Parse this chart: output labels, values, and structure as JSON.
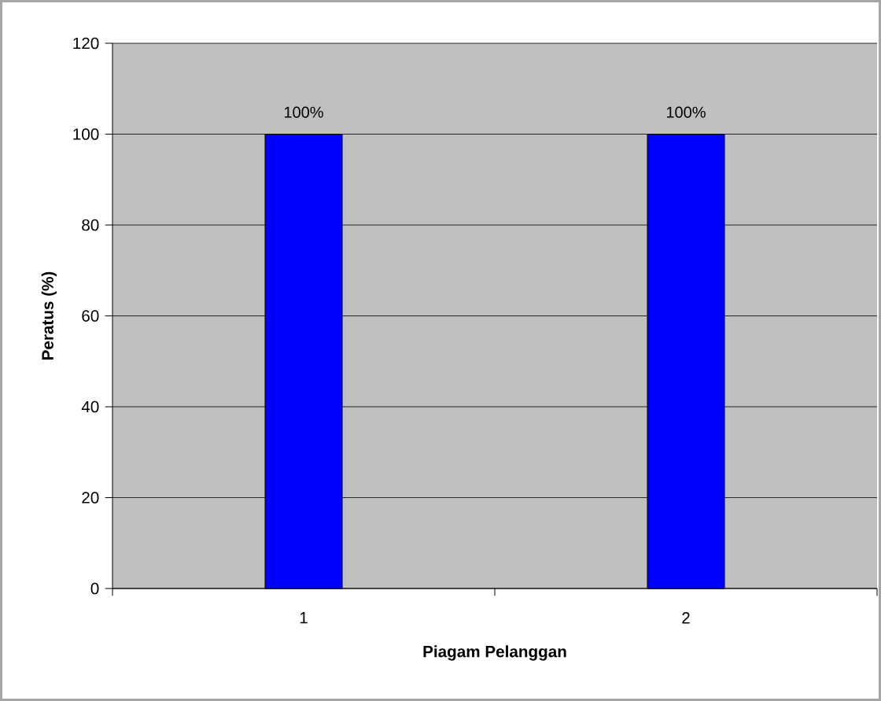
{
  "chart_data": {
    "type": "bar",
    "categories": [
      "1",
      "2"
    ],
    "series": [
      {
        "color": "#0000ff",
        "values": [
          100,
          100
        ],
        "value_labels": [
          "100%",
          "100%"
        ]
      }
    ],
    "xlabel": "Piagam Pelanggan",
    "ylabel": "Peratus (%)",
    "ylim": [
      0,
      120
    ],
    "yticks": [
      0,
      20,
      40,
      60,
      80,
      100,
      120
    ],
    "grid": "y"
  }
}
